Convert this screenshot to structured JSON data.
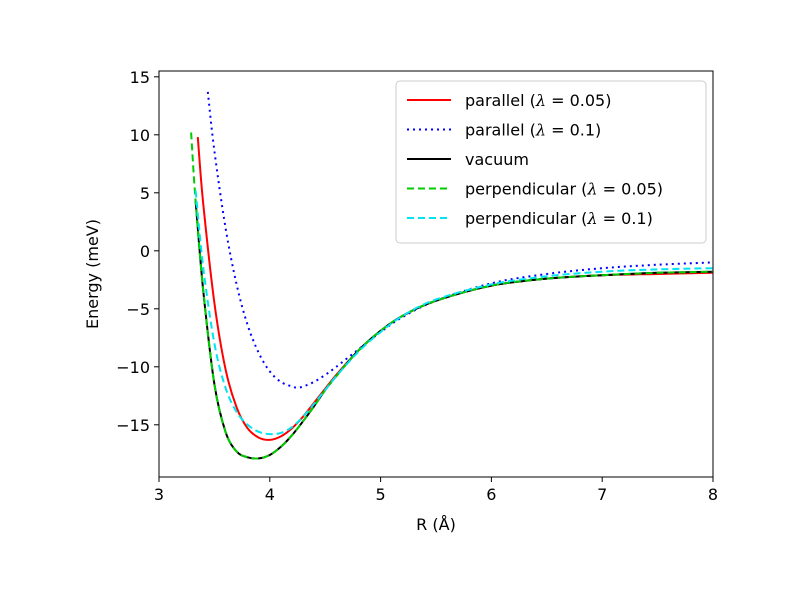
{
  "chart_data": {
    "type": "line",
    "title": "",
    "xlabel": "R (Å)",
    "ylabel": "Energy (meV)",
    "xlim": [
      3,
      8
    ],
    "ylim": [
      -19.5,
      15.5
    ],
    "xticks": [
      3,
      4,
      5,
      6,
      7,
      8
    ],
    "xtick_labels": [
      "3",
      "4",
      "5",
      "6",
      "7",
      "8"
    ],
    "yticks": [
      -15,
      -10,
      -5,
      0,
      5,
      10,
      15
    ],
    "ytick_labels": [
      "−15",
      "−10",
      "−5",
      "0",
      "5",
      "10",
      "15"
    ],
    "grid": false,
    "legend_position": "top-right",
    "series": [
      {
        "name": "parallel (λ = 0.05)",
        "legend_text": "parallel (",
        "legend_param": "0.05",
        "color": "#ff0000",
        "style": "solid",
        "x": [
          3.35,
          3.4,
          3.5,
          3.6,
          3.7,
          3.8,
          3.9,
          4.0,
          4.1,
          4.2,
          4.3,
          4.4,
          4.5,
          4.6,
          4.8,
          5.0,
          5.2,
          5.5,
          6.0,
          6.5,
          7.0,
          7.5,
          8.0
        ],
        "y": [
          9.8,
          4.0,
          -4.5,
          -10.2,
          -13.5,
          -15.3,
          -16.1,
          -16.3,
          -16.0,
          -15.3,
          -14.3,
          -13.1,
          -11.9,
          -10.7,
          -8.6,
          -6.9,
          -5.6,
          -4.3,
          -3.0,
          -2.4,
          -2.1,
          -2.0,
          -1.9
        ]
      },
      {
        "name": "parallel (λ = 0.1)",
        "legend_text": "parallel (",
        "legend_param": "0.1",
        "color": "#0000ff",
        "style": "dotted",
        "x": [
          3.44,
          3.5,
          3.6,
          3.7,
          3.8,
          3.9,
          4.0,
          4.1,
          4.2,
          4.25,
          4.3,
          4.4,
          4.5,
          4.6,
          4.8,
          5.0,
          5.2,
          5.5,
          6.0,
          6.5,
          7.0,
          7.5,
          8.0
        ],
        "y": [
          13.7,
          8.6,
          2.0,
          -2.9,
          -6.4,
          -8.8,
          -10.4,
          -11.3,
          -11.7,
          -11.8,
          -11.7,
          -11.3,
          -10.7,
          -10.0,
          -8.5,
          -7.0,
          -5.7,
          -4.3,
          -2.8,
          -2.0,
          -1.5,
          -1.2,
          -1.0
        ]
      },
      {
        "name": "vacuum",
        "legend_text": "vacuum",
        "legend_param": "",
        "color": "#000000",
        "style": "solid",
        "x": [
          3.33,
          3.4,
          3.5,
          3.6,
          3.7,
          3.8,
          3.9,
          4.0,
          4.1,
          4.2,
          4.3,
          4.4,
          4.5,
          4.6,
          4.8,
          5.0,
          5.2,
          5.5,
          6.0,
          6.5,
          7.0,
          7.5,
          8.0
        ],
        "y": [
          4.3,
          -3.5,
          -11.5,
          -15.6,
          -17.3,
          -17.8,
          -17.9,
          -17.6,
          -16.9,
          -15.9,
          -14.7,
          -13.4,
          -12.0,
          -10.8,
          -8.6,
          -6.9,
          -5.6,
          -4.3,
          -3.0,
          -2.4,
          -2.1,
          -1.9,
          -1.8
        ]
      },
      {
        "name": "perpendicular (λ = 0.05)",
        "legend_text": "perpendicular (",
        "legend_param": "0.05",
        "color": "#00cc00",
        "style": "dashed",
        "x": [
          3.29,
          3.33,
          3.4,
          3.5,
          3.6,
          3.7,
          3.8,
          3.9,
          4.0,
          4.1,
          4.2,
          4.3,
          4.4,
          4.5,
          4.6,
          4.8,
          5.0,
          5.2,
          5.5,
          6.0,
          6.5,
          7.0,
          7.5,
          8.0
        ],
        "y": [
          10.2,
          4.3,
          -3.5,
          -11.5,
          -15.6,
          -17.3,
          -17.8,
          -17.9,
          -17.6,
          -16.9,
          -15.9,
          -14.7,
          -13.4,
          -12.0,
          -10.8,
          -8.6,
          -6.9,
          -5.6,
          -4.3,
          -3.0,
          -2.4,
          -2.1,
          -1.9,
          -1.8
        ]
      },
      {
        "name": "perpendicular (λ = 0.1)",
        "legend_text": "perpendicular (",
        "legend_param": "0.1",
        "color": "#00e5ee",
        "style": "dashed",
        "x": [
          3.33,
          3.4,
          3.5,
          3.6,
          3.7,
          3.8,
          3.9,
          4.0,
          4.1,
          4.2,
          4.3,
          4.4,
          4.5,
          4.6,
          4.8,
          5.0,
          5.2,
          5.5,
          6.0,
          6.5,
          7.0,
          7.5,
          8.0
        ],
        "y": [
          5.2,
          -1.5,
          -8.0,
          -11.8,
          -13.9,
          -15.0,
          -15.6,
          -15.8,
          -15.7,
          -15.2,
          -14.3,
          -13.2,
          -12.0,
          -10.8,
          -8.7,
          -7.0,
          -5.6,
          -4.2,
          -2.9,
          -2.2,
          -1.8,
          -1.6,
          -1.5
        ]
      }
    ]
  }
}
